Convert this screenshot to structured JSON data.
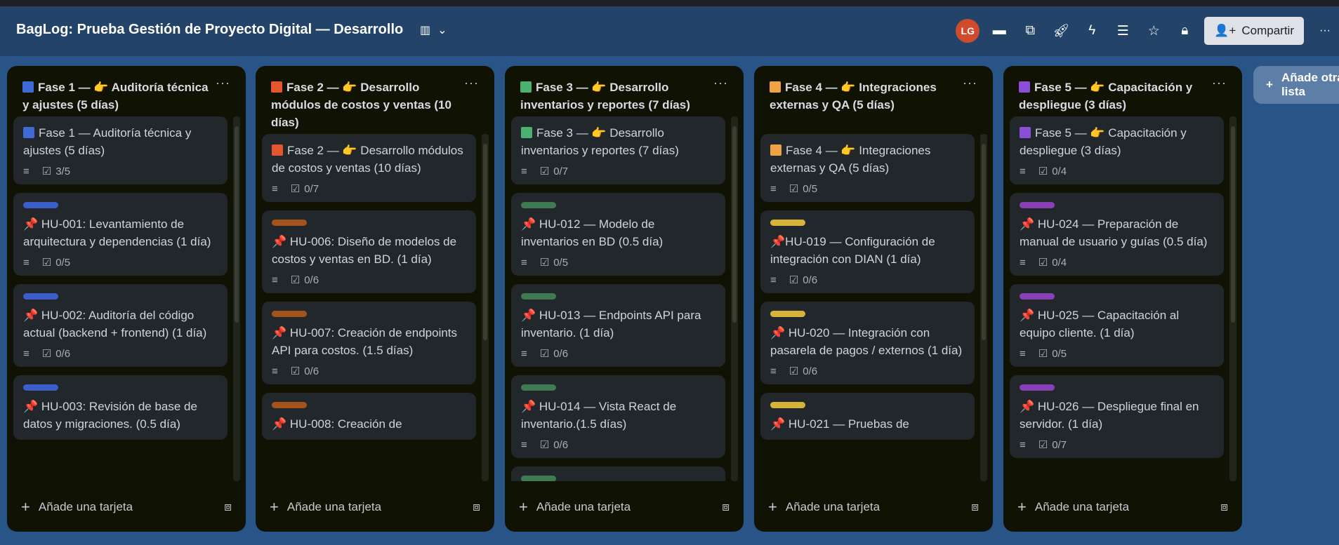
{
  "header": {
    "title": "BagLog: Prueba Gestión de Proyecto Digital — Desarrollo",
    "avatar_initials": "LG",
    "share_label": "Compartir",
    "more": "···"
  },
  "colors": {
    "blue": "#3f6bd6",
    "red": "#e4572e",
    "green": "#4bb16f",
    "orange": "#f0a344",
    "purple": "#8a4fd6",
    "label_blue": "#3a5fcd",
    "label_orange": "#a5531c",
    "label_green": "#3e7b52",
    "label_yellow": "#d6b43a",
    "label_purple": "#8840b8"
  },
  "columns": [
    {
      "title": "Fase 1 — 👉 Auditoría técnica y ajustes (5 días)",
      "square": "#3f6bd6",
      "cards": [
        {
          "label": null,
          "square": "#3f6bd6",
          "title": "Fase 1 — Auditoría técnica y ajustes (5 días)",
          "checklist": "3/5"
        },
        {
          "label": "#3a5fcd",
          "title": "📌 HU-001: Levantamiento de arquitectura y dependencias (1 día)",
          "checklist": "0/5"
        },
        {
          "label": "#3a5fcd",
          "title": "📌 HU-002: Auditoría del código actual (backend + frontend) (1 día)",
          "checklist": "0/6"
        },
        {
          "label": "#3a5fcd",
          "title": "📌 HU-003: Revisión de base de datos y migraciones. (0.5 día)",
          "checklist": null
        }
      ]
    },
    {
      "title": "Fase 2 — 👉 Desarrollo módulos de costos y ventas (10 días)",
      "square": "#e4572e",
      "cards": [
        {
          "label": null,
          "square": "#e4572e",
          "title": "Fase 2 — 👉 Desarrollo módulos de costos y ventas (10 días)",
          "checklist": "0/7"
        },
        {
          "label": "#a5531c",
          "title": "📌 HU-006: Diseño de modelos de costos y ventas en BD. (1 día)",
          "checklist": "0/6"
        },
        {
          "label": "#a5531c",
          "title": "📌 HU-007: Creación de endpoints API para costos. (1.5 días)",
          "checklist": "0/6"
        },
        {
          "label": "#a5531c",
          "title": "📌 HU-008: Creación de",
          "checklist": null
        }
      ]
    },
    {
      "title": "Fase 3 — 👉 Desarrollo inventarios y reportes (7 días)",
      "square": "#4bb16f",
      "cards": [
        {
          "label": null,
          "square": "#4bb16f",
          "title": "Fase 3 — 👉 Desarrollo inventarios y reportes (7 días)",
          "checklist": "0/7"
        },
        {
          "label": "#3e7b52",
          "title": "📌 HU-012 — Modelo de inventarios en BD (0.5 día)",
          "checklist": "0/5"
        },
        {
          "label": "#3e7b52",
          "title": "📌 HU-013 — Endpoints API para inventario. (1 día)",
          "checklist": "0/6"
        },
        {
          "label": "#3e7b52",
          "title": "📌 HU-014 — Vista React de inventario.(1.5 días)",
          "checklist": "0/6"
        },
        {
          "label": "#3e7b52",
          "title": "",
          "checklist": null
        }
      ]
    },
    {
      "title": "Fase 4 — 👉 Integraciones externas y QA (5 días)",
      "square": "#f0a344",
      "cards": [
        {
          "label": null,
          "square": "#f0a344",
          "title": "Fase 4 — 👉 Integraciones externas y QA (5 días)",
          "checklist": "0/5"
        },
        {
          "label": "#d6b43a",
          "title": "📌HU-019 — Configuración de integración con DIAN (1 día)",
          "checklist": "0/6"
        },
        {
          "label": "#d6b43a",
          "title": "📌 HU-020 — Integración con pasarela de pagos / externos (1 día)",
          "checklist": "0/6"
        },
        {
          "label": "#d6b43a",
          "title": "📌 HU-021 — Pruebas de",
          "checklist": null
        }
      ]
    },
    {
      "title": "Fase 5 — 👉 Capacitación y despliegue (3 días)",
      "square": "#8a4fd6",
      "cards": [
        {
          "label": null,
          "square": "#8a4fd6",
          "title": "Fase 5 — 👉 Capacitación y despliegue (3 días)",
          "checklist": "0/4"
        },
        {
          "label": "#8840b8",
          "title": "📌 HU-024 — Preparación de manual de usuario y guías (0.5 día)",
          "checklist": "0/4"
        },
        {
          "label": "#8840b8",
          "title": "📌 HU-025 — Capacitación al equipo cliente. (1 día)",
          "checklist": "0/5"
        },
        {
          "label": "#8840b8",
          "title": "📌 HU-026 — Despliegue final en servidor. (1 día)",
          "checklist": "0/7"
        }
      ]
    }
  ],
  "add_card_label": "Añade una tarjeta",
  "add_list_label": "Añade otra lista"
}
